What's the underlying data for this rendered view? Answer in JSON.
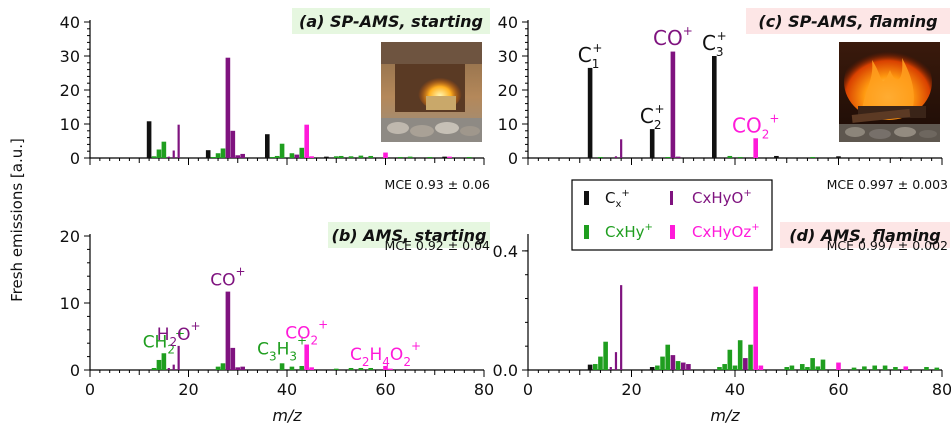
{
  "figure": {
    "ylabel": "Fresh emissions [a.u.]",
    "xlabel": "m/z",
    "colors": {
      "cx": "#111111",
      "cxhy": "#1f9e1f",
      "cxhyo": "#7f137f",
      "cxhyoz": "#ff1ad9"
    },
    "legend": [
      {
        "key": "cx",
        "text": "C",
        "sub": "x",
        "sup": "+"
      },
      {
        "key": "cxhyo",
        "text": "CxHyO",
        "sup": "+"
      },
      {
        "key": "cxhy",
        "text": "CxHy",
        "sup": "+"
      },
      {
        "key": "cxhyoz",
        "text": "CxHyOz",
        "sup": "+"
      }
    ]
  },
  "chart_data": [
    {
      "id": "a",
      "type": "bar",
      "title": "(a) SP-AMS, starting",
      "mce": "MCE 0.93 ± 0.06",
      "xlim": [
        0,
        80
      ],
      "ylim": [
        0,
        40
      ],
      "xticks": [
        0,
        20,
        40,
        60,
        80
      ],
      "yticks": [
        0,
        10,
        20,
        30,
        40
      ],
      "ytick_labels": [
        "0",
        "10",
        "20",
        "30",
        "40"
      ],
      "show_xtick_labels": false,
      "title_bg": "#e6f7e0",
      "photo": "fireplace-starting",
      "bars": [
        {
          "x": 12,
          "y": 10.8,
          "k": "cx"
        },
        {
          "x": 13,
          "y": 0.5,
          "k": "cxhy"
        },
        {
          "x": 14,
          "y": 2.5,
          "k": "cxhy"
        },
        {
          "x": 15,
          "y": 4.8,
          "k": "cxhy"
        },
        {
          "x": 16,
          "y": 0.4,
          "k": "cxhyo"
        },
        {
          "x": 17,
          "y": 2.2,
          "k": "cxhyo"
        },
        {
          "x": 18,
          "y": 9.8,
          "k": "cxhyo"
        },
        {
          "x": 24,
          "y": 2.3,
          "k": "cx"
        },
        {
          "x": 25,
          "y": 0.3,
          "k": "cxhy"
        },
        {
          "x": 26,
          "y": 1.4,
          "k": "cxhy"
        },
        {
          "x": 27,
          "y": 2.8,
          "k": "cxhy"
        },
        {
          "x": 28,
          "y": 29.5,
          "k": "cxhyo"
        },
        {
          "x": 29,
          "y": 8.0,
          "k": "cxhyo"
        },
        {
          "x": 30,
          "y": 0.8,
          "k": "cxhyo"
        },
        {
          "x": 31,
          "y": 1.2,
          "k": "cxhyo"
        },
        {
          "x": 36,
          "y": 7.0,
          "k": "cx"
        },
        {
          "x": 37,
          "y": 0.3,
          "k": "cxhy"
        },
        {
          "x": 38,
          "y": 0.6,
          "k": "cxhy"
        },
        {
          "x": 39,
          "y": 4.2,
          "k": "cxhy"
        },
        {
          "x": 41,
          "y": 1.4,
          "k": "cxhy"
        },
        {
          "x": 42,
          "y": 1.0,
          "k": "cxhyo"
        },
        {
          "x": 43,
          "y": 3.0,
          "k": "cxhy"
        },
        {
          "x": 44,
          "y": 9.8,
          "k": "cxhyoz"
        },
        {
          "x": 45,
          "y": 0.5,
          "k": "cxhyoz"
        },
        {
          "x": 48,
          "y": 0.4,
          "k": "cx"
        },
        {
          "x": 50,
          "y": 0.5,
          "k": "cxhy"
        },
        {
          "x": 51,
          "y": 0.6,
          "k": "cxhy"
        },
        {
          "x": 53,
          "y": 0.5,
          "k": "cxhy"
        },
        {
          "x": 55,
          "y": 0.7,
          "k": "cxhy"
        },
        {
          "x": 57,
          "y": 0.6,
          "k": "cxhy"
        },
        {
          "x": 60,
          "y": 1.6,
          "k": "cxhyoz"
        },
        {
          "x": 63,
          "y": 0.3,
          "k": "cxhy"
        },
        {
          "x": 65,
          "y": 0.4,
          "k": "cxhy"
        },
        {
          "x": 69,
          "y": 0.3,
          "k": "cxhy"
        },
        {
          "x": 72,
          "y": 0.4,
          "k": "cx"
        },
        {
          "x": 73,
          "y": 0.4,
          "k": "cxhyoz"
        },
        {
          "x": 77,
          "y": 0.3,
          "k": "cxhy"
        }
      ]
    },
    {
      "id": "c",
      "type": "bar",
      "title": "(c) SP-AMS, flaming",
      "mce": "MCE 0.997 ± 0.003",
      "xlim": [
        0,
        80
      ],
      "ylim": [
        0,
        40
      ],
      "xticks": [
        0,
        20,
        40,
        60,
        80
      ],
      "yticks": [
        0,
        10,
        20,
        30,
        40
      ],
      "ytick_labels": [
        "0",
        "10",
        "20",
        "30",
        "40"
      ],
      "show_xtick_labels": false,
      "title_bg": "#fde6e6",
      "photo": "fireplace-flaming",
      "labels": [
        {
          "x": 12,
          "y": 26.5,
          "main": "C",
          "sub": "1",
          "sup": "+",
          "k": "cx"
        },
        {
          "x": 24,
          "y": 8.5,
          "main": "C",
          "sub": "2",
          "sup": "+",
          "k": "cx"
        },
        {
          "x": 28,
          "y": 31.5,
          "main": "CO",
          "sub": "",
          "sup": "+",
          "k": "cxhyo"
        },
        {
          "x": 36,
          "y": 30,
          "main": "C",
          "sub": "3",
          "sup": "+",
          "k": "cx"
        },
        {
          "x": 44,
          "y": 5.8,
          "main": "CO",
          "sub": "2",
          "sup": "+",
          "k": "cxhyoz"
        }
      ],
      "bars": [
        {
          "x": 12,
          "y": 26.5,
          "k": "cx"
        },
        {
          "x": 14,
          "y": 0.3,
          "k": "cxhy"
        },
        {
          "x": 17,
          "y": 0.5,
          "k": "cxhyo"
        },
        {
          "x": 18,
          "y": 5.5,
          "k": "cxhyo"
        },
        {
          "x": 24,
          "y": 8.5,
          "k": "cx"
        },
        {
          "x": 27,
          "y": 0.3,
          "k": "cxhy"
        },
        {
          "x": 28,
          "y": 31.3,
          "k": "cxhyo"
        },
        {
          "x": 29,
          "y": 0.4,
          "k": "cxhyo"
        },
        {
          "x": 36,
          "y": 30.0,
          "k": "cx"
        },
        {
          "x": 39,
          "y": 0.6,
          "k": "cxhy"
        },
        {
          "x": 41,
          "y": 0.3,
          "k": "cxhy"
        },
        {
          "x": 44,
          "y": 5.8,
          "k": "cxhyoz"
        },
        {
          "x": 48,
          "y": 0.6,
          "k": "cx"
        },
        {
          "x": 55,
          "y": 0.3,
          "k": "cxhy"
        },
        {
          "x": 60,
          "y": 0.5,
          "k": "cx"
        },
        {
          "x": 72,
          "y": 0.2,
          "k": "cx"
        }
      ]
    },
    {
      "id": "b",
      "type": "bar",
      "title": "(b) AMS, starting",
      "mce": "MCE 0.92 ± 0.04",
      "xlim": [
        0,
        80
      ],
      "ylim": [
        0,
        20
      ],
      "xticks": [
        0,
        20,
        40,
        60,
        80
      ],
      "yticks": [
        0,
        10,
        20
      ],
      "ytick_labels": [
        "0",
        "10",
        "20"
      ],
      "show_xtick_labels": true,
      "title_bg": "#e6f7e0",
      "labels": [
        {
          "x": 15,
          "y": 2.5,
          "main": "CH",
          "sub": "2",
          "sup": "+",
          "k": "cxhy"
        },
        {
          "x": 18,
          "y": 3.6,
          "main": "H",
          "sub": "2",
          "post": "O",
          "sup": "+",
          "k": "cxhyo"
        },
        {
          "x": 28,
          "y": 11.7,
          "main": "CO",
          "sub": "",
          "sup": "+",
          "k": "cxhyo"
        },
        {
          "x": 39,
          "y": 1.4,
          "main": "C",
          "sub": "3",
          "post": "H",
          "sub2": "3",
          "sup": "+",
          "k": "cxhy"
        },
        {
          "x": 44,
          "y": 3.8,
          "main": "CO",
          "sub": "2",
          "sup": "+",
          "k": "cxhyoz"
        },
        {
          "x": 60,
          "y": 0.6,
          "main": "C",
          "sub": "2",
          "post": "H",
          "sub2": "4",
          "post2": "O",
          "sub3": "2",
          "sup": "+",
          "k": "cxhyoz"
        }
      ],
      "bars": [
        {
          "x": 13,
          "y": 0.3,
          "k": "cxhy"
        },
        {
          "x": 14,
          "y": 1.5,
          "k": "cxhy"
        },
        {
          "x": 15,
          "y": 2.5,
          "k": "cxhy"
        },
        {
          "x": 16,
          "y": 0.3,
          "k": "cxhyo"
        },
        {
          "x": 17,
          "y": 0.8,
          "k": "cxhyo"
        },
        {
          "x": 18,
          "y": 3.6,
          "k": "cxhyo"
        },
        {
          "x": 26,
          "y": 0.5,
          "k": "cxhy"
        },
        {
          "x": 27,
          "y": 1.0,
          "k": "cxhy"
        },
        {
          "x": 28,
          "y": 11.7,
          "k": "cxhyo"
        },
        {
          "x": 29,
          "y": 3.3,
          "k": "cxhyo"
        },
        {
          "x": 30,
          "y": 0.4,
          "k": "cxhyo"
        },
        {
          "x": 31,
          "y": 0.5,
          "k": "cxhyo"
        },
        {
          "x": 39,
          "y": 1.0,
          "k": "cxhy"
        },
        {
          "x": 41,
          "y": 0.5,
          "k": "cxhy"
        },
        {
          "x": 43,
          "y": 0.6,
          "k": "cxhy"
        },
        {
          "x": 44,
          "y": 3.8,
          "k": "cxhyoz"
        },
        {
          "x": 45,
          "y": 0.4,
          "k": "cxhyoz"
        },
        {
          "x": 50,
          "y": 0.2,
          "k": "cxhy"
        },
        {
          "x": 53,
          "y": 0.3,
          "k": "cxhy"
        },
        {
          "x": 55,
          "y": 0.3,
          "k": "cxhy"
        },
        {
          "x": 57,
          "y": 0.3,
          "k": "cxhy"
        },
        {
          "x": 60,
          "y": 0.6,
          "k": "cxhyoz"
        },
        {
          "x": 61,
          "y": 0.2,
          "k": "cxhyoz"
        }
      ]
    },
    {
      "id": "d",
      "type": "bar",
      "title": "(d) AMS, flaming",
      "mce": "MCE 0.997 ± 0.002",
      "xlim": [
        0,
        80
      ],
      "ylim": [
        0,
        0.45
      ],
      "xticks": [
        0,
        20,
        40,
        60,
        80
      ],
      "yticks": [
        0,
        0.4
      ],
      "ytick_labels": [
        "0.0",
        "0.4"
      ],
      "show_xtick_labels": true,
      "title_bg": "#fde6e6",
      "bars": [
        {
          "x": 12,
          "y": 0.018,
          "k": "cx"
        },
        {
          "x": 13,
          "y": 0.02,
          "k": "cxhy"
        },
        {
          "x": 14,
          "y": 0.045,
          "k": "cxhy"
        },
        {
          "x": 15,
          "y": 0.095,
          "k": "cxhy"
        },
        {
          "x": 16,
          "y": 0.01,
          "k": "cxhyo"
        },
        {
          "x": 17,
          "y": 0.06,
          "k": "cxhyo"
        },
        {
          "x": 18,
          "y": 0.285,
          "k": "cxhyo"
        },
        {
          "x": 24,
          "y": 0.01,
          "k": "cx"
        },
        {
          "x": 25,
          "y": 0.015,
          "k": "cxhy"
        },
        {
          "x": 26,
          "y": 0.045,
          "k": "cxhy"
        },
        {
          "x": 27,
          "y": 0.085,
          "k": "cxhy"
        },
        {
          "x": 28,
          "y": 0.05,
          "k": "cxhyo"
        },
        {
          "x": 29,
          "y": 0.03,
          "k": "cxhy"
        },
        {
          "x": 30,
          "y": 0.025,
          "k": "cxhyo"
        },
        {
          "x": 31,
          "y": 0.02,
          "k": "cxhyo"
        },
        {
          "x": 37,
          "y": 0.01,
          "k": "cxhy"
        },
        {
          "x": 38,
          "y": 0.02,
          "k": "cxhy"
        },
        {
          "x": 39,
          "y": 0.068,
          "k": "cxhy"
        },
        {
          "x": 40,
          "y": 0.015,
          "k": "cxhy"
        },
        {
          "x": 41,
          "y": 0.1,
          "k": "cxhy"
        },
        {
          "x": 42,
          "y": 0.04,
          "k": "cxhyo"
        },
        {
          "x": 43,
          "y": 0.085,
          "k": "cxhy"
        },
        {
          "x": 44,
          "y": 0.28,
          "k": "cxhyoz"
        },
        {
          "x": 45,
          "y": 0.015,
          "k": "cxhyoz"
        },
        {
          "x": 50,
          "y": 0.01,
          "k": "cxhy"
        },
        {
          "x": 51,
          "y": 0.015,
          "k": "cxhy"
        },
        {
          "x": 53,
          "y": 0.02,
          "k": "cxhy"
        },
        {
          "x": 54,
          "y": 0.01,
          "k": "cxhy"
        },
        {
          "x": 55,
          "y": 0.04,
          "k": "cxhy"
        },
        {
          "x": 56,
          "y": 0.012,
          "k": "cxhy"
        },
        {
          "x": 57,
          "y": 0.035,
          "k": "cxhy"
        },
        {
          "x": 60,
          "y": 0.025,
          "k": "cxhyoz"
        },
        {
          "x": 63,
          "y": 0.008,
          "k": "cxhy"
        },
        {
          "x": 65,
          "y": 0.012,
          "k": "cxhy"
        },
        {
          "x": 67,
          "y": 0.015,
          "k": "cxhy"
        },
        {
          "x": 69,
          "y": 0.015,
          "k": "cxhy"
        },
        {
          "x": 71,
          "y": 0.01,
          "k": "cxhy"
        },
        {
          "x": 73,
          "y": 0.012,
          "k": "cxhyoz"
        },
        {
          "x": 77,
          "y": 0.01,
          "k": "cxhy"
        },
        {
          "x": 79,
          "y": 0.008,
          "k": "cxhy"
        }
      ]
    }
  ]
}
